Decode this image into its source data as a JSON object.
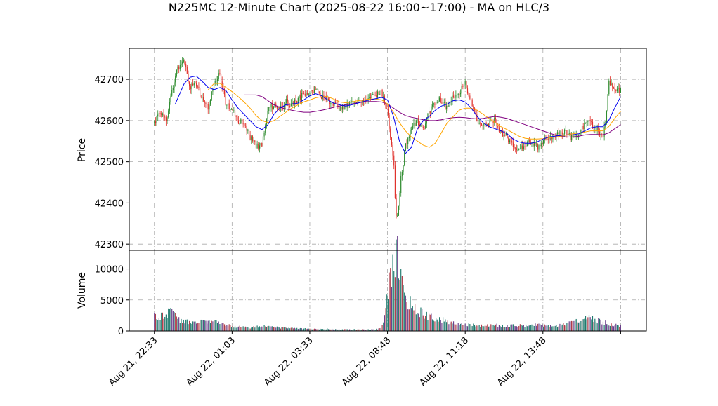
{
  "chart_data": {
    "type": "candlestick",
    "title": "N225MC 12-Minute Chart (2025-08-22 16:00~17:00) - MA on HLC/3",
    "price_panel": {
      "ylabel": "Price",
      "ylim": [
        42285,
        42775
      ],
      "yticks": [
        42300,
        42400,
        42500,
        42600,
        42700
      ],
      "grid": true
    },
    "volume_panel": {
      "ylabel": "Volume",
      "ylim": [
        0,
        13000
      ],
      "yticks": [
        0,
        5000,
        10000
      ],
      "grid": true
    },
    "x_ticks": [
      {
        "label": "Aug 21, 22:33",
        "bar": 0
      },
      {
        "label": "Aug 22, 01:03",
        "bar": 13
      },
      {
        "label": "Aug 22, 03:33",
        "bar": 26
      },
      {
        "label": "Aug 22, 08:48",
        "bar": 39
      },
      {
        "label": "Aug 22, 11:18",
        "bar": 52
      },
      {
        "label": "Aug 22, 13:48",
        "bar": 65
      },
      {
        "label": "",
        "bar": 78
      }
    ],
    "x_range": [
      -4.2,
      82.3
    ],
    "colors": {
      "up": "#2e8b2e",
      "down": "#e0302a",
      "ma_fast": "#0000ee",
      "ma_mid": "#ffa500",
      "ma_slow": "#800080",
      "grid": "#aaaaaa"
    },
    "close_path": [
      [
        0,
        42595
      ],
      [
        1,
        42620
      ],
      [
        2,
        42600
      ],
      [
        3,
        42680
      ],
      [
        4,
        42730
      ],
      [
        5,
        42745
      ],
      [
        6,
        42680
      ],
      [
        7,
        42690
      ],
      [
        8,
        42650
      ],
      [
        9,
        42630
      ],
      [
        10,
        42700
      ],
      [
        11,
        42710
      ],
      [
        12,
        42640
      ],
      [
        13,
        42630
      ],
      [
        14,
        42600
      ],
      [
        15,
        42590
      ],
      [
        16,
        42560
      ],
      [
        17,
        42540
      ],
      [
        18,
        42540
      ],
      [
        19,
        42625
      ],
      [
        20,
        42640
      ],
      [
        21,
        42625
      ],
      [
        22,
        42645
      ],
      [
        23,
        42640
      ],
      [
        24,
        42650
      ],
      [
        25,
        42665
      ],
      [
        26,
        42670
      ],
      [
        27,
        42675
      ],
      [
        28,
        42660
      ],
      [
        29,
        42650
      ],
      [
        30,
        42640
      ],
      [
        31,
        42630
      ],
      [
        32,
        42635
      ],
      [
        33,
        42640
      ],
      [
        34,
        42645
      ],
      [
        35,
        42650
      ],
      [
        36,
        42655
      ],
      [
        37,
        42660
      ],
      [
        38,
        42670
      ],
      [
        38.5,
        42640
      ],
      [
        39,
        42620
      ],
      [
        39.5,
        42560
      ],
      [
        40,
        42510
      ],
      [
        40.4,
        42370
      ],
      [
        40.8,
        42380
      ],
      [
        41.2,
        42460
      ],
      [
        41.6,
        42490
      ],
      [
        42,
        42540
      ],
      [
        43,
        42580
      ],
      [
        44,
        42600
      ],
      [
        45,
        42580
      ],
      [
        46,
        42620
      ],
      [
        47,
        42640
      ],
      [
        48,
        42650
      ],
      [
        49,
        42630
      ],
      [
        50,
        42660
      ],
      [
        51,
        42670
      ],
      [
        52,
        42690
      ],
      [
        53,
        42640
      ],
      [
        54,
        42600
      ],
      [
        55,
        42590
      ],
      [
        56,
        42590
      ],
      [
        57,
        42600
      ],
      [
        58,
        42570
      ],
      [
        59,
        42560
      ],
      [
        60,
        42540
      ],
      [
        61,
        42530
      ],
      [
        62,
        42545
      ],
      [
        63,
        42550
      ],
      [
        64,
        42535
      ],
      [
        65,
        42550
      ],
      [
        66,
        42560
      ],
      [
        67,
        42565
      ],
      [
        68,
        42575
      ],
      [
        69,
        42570
      ],
      [
        70,
        42555
      ],
      [
        71,
        42570
      ],
      [
        72,
        42590
      ],
      [
        73,
        42595
      ],
      [
        74,
        42580
      ],
      [
        75,
        42560
      ],
      [
        75.5,
        42600
      ],
      [
        76,
        42690
      ],
      [
        77,
        42680
      ],
      [
        78,
        42672
      ]
    ],
    "ma_fast": [
      [
        3.5,
        42640
      ],
      [
        5,
        42690
      ],
      [
        6,
        42705
      ],
      [
        7,
        42708
      ],
      [
        8,
        42695
      ],
      [
        9,
        42680
      ],
      [
        10,
        42675
      ],
      [
        11,
        42680
      ],
      [
        12,
        42672
      ],
      [
        13,
        42650
      ],
      [
        14,
        42630
      ],
      [
        15,
        42615
      ],
      [
        16,
        42600
      ],
      [
        17,
        42585
      ],
      [
        18,
        42578
      ],
      [
        19,
        42590
      ],
      [
        20,
        42615
      ],
      [
        21,
        42630
      ],
      [
        22,
        42638
      ],
      [
        23,
        42640
      ],
      [
        24,
        42642
      ],
      [
        25,
        42650
      ],
      [
        26,
        42660
      ],
      [
        27,
        42665
      ],
      [
        28,
        42660
      ],
      [
        29,
        42650
      ],
      [
        30,
        42642
      ],
      [
        31,
        42638
      ],
      [
        32,
        42635
      ],
      [
        33,
        42638
      ],
      [
        34,
        42642
      ],
      [
        35,
        42646
      ],
      [
        36,
        42650
      ],
      [
        37,
        42653
      ],
      [
        38,
        42656
      ],
      [
        39,
        42650
      ],
      [
        40,
        42610
      ],
      [
        41,
        42550
      ],
      [
        42,
        42520
      ],
      [
        43,
        42535
      ],
      [
        44,
        42580
      ],
      [
        45,
        42600
      ],
      [
        46,
        42610
      ],
      [
        47,
        42625
      ],
      [
        48,
        42635
      ],
      [
        49,
        42640
      ],
      [
        50,
        42648
      ],
      [
        51,
        42650
      ],
      [
        52,
        42645
      ],
      [
        53,
        42630
      ],
      [
        54,
        42610
      ],
      [
        55,
        42595
      ],
      [
        56,
        42585
      ],
      [
        57,
        42580
      ],
      [
        58,
        42575
      ],
      [
        59,
        42568
      ],
      [
        60,
        42555
      ],
      [
        61,
        42548
      ],
      [
        62,
        42545
      ],
      [
        63,
        42545
      ],
      [
        64,
        42548
      ],
      [
        65,
        42555
      ],
      [
        66,
        42560
      ],
      [
        67,
        42562
      ],
      [
        68,
        42564
      ],
      [
        69,
        42565
      ],
      [
        70,
        42565
      ],
      [
        71,
        42568
      ],
      [
        72,
        42575
      ],
      [
        73,
        42582
      ],
      [
        74,
        42585
      ],
      [
        75,
        42585
      ],
      [
        76,
        42600
      ],
      [
        77,
        42630
      ],
      [
        78,
        42658
      ]
    ],
    "ma_mid": [
      [
        9,
        42675
      ],
      [
        10,
        42690
      ],
      [
        11,
        42690
      ],
      [
        12,
        42680
      ],
      [
        13,
        42670
      ],
      [
        14,
        42658
      ],
      [
        15,
        42645
      ],
      [
        16,
        42630
      ],
      [
        17,
        42612
      ],
      [
        18,
        42600
      ],
      [
        19,
        42595
      ],
      [
        20,
        42600
      ],
      [
        21,
        42610
      ],
      [
        22,
        42620
      ],
      [
        23,
        42630
      ],
      [
        24,
        42638
      ],
      [
        25,
        42645
      ],
      [
        26,
        42650
      ],
      [
        27,
        42655
      ],
      [
        28,
        42658
      ],
      [
        29,
        42658
      ],
      [
        30,
        42652
      ],
      [
        31,
        42645
      ],
      [
        32,
        42643
      ],
      [
        33,
        42645
      ],
      [
        34,
        42648
      ],
      [
        35,
        42650
      ],
      [
        36,
        42652
      ],
      [
        37,
        42652
      ],
      [
        38,
        42650
      ],
      [
        39,
        42640
      ],
      [
        40,
        42620
      ],
      [
        41,
        42595
      ],
      [
        42,
        42575
      ],
      [
        43,
        42560
      ],
      [
        44,
        42550
      ],
      [
        45,
        42540
      ],
      [
        46,
        42535
      ],
      [
        47,
        42545
      ],
      [
        48,
        42570
      ],
      [
        49,
        42595
      ],
      [
        50,
        42610
      ],
      [
        51,
        42625
      ],
      [
        52,
        42630
      ],
      [
        53,
        42630
      ],
      [
        54,
        42625
      ],
      [
        55,
        42615
      ],
      [
        56,
        42605
      ],
      [
        57,
        42595
      ],
      [
        58,
        42585
      ],
      [
        59,
        42578
      ],
      [
        60,
        42570
      ],
      [
        61,
        42562
      ],
      [
        62,
        42557
      ],
      [
        63,
        42555
      ],
      [
        64,
        42555
      ],
      [
        65,
        42556
      ],
      [
        66,
        42558
      ],
      [
        67,
        42560
      ],
      [
        68,
        42562
      ],
      [
        69,
        42565
      ],
      [
        70,
        42568
      ],
      [
        71,
        42570
      ],
      [
        72,
        42572
      ],
      [
        73,
        42575
      ],
      [
        74,
        42575
      ],
      [
        75,
        42575
      ],
      [
        76,
        42585
      ],
      [
        77,
        42605
      ],
      [
        78,
        42622
      ]
    ],
    "ma_slow": [
      [
        15,
        42662
      ],
      [
        16,
        42662
      ],
      [
        17,
        42662
      ],
      [
        18,
        42658
      ],
      [
        19,
        42648
      ],
      [
        20,
        42638
      ],
      [
        21,
        42632
      ],
      [
        22,
        42628
      ],
      [
        23,
        42625
      ],
      [
        24,
        42622
      ],
      [
        25,
        42620
      ],
      [
        26,
        42620
      ],
      [
        27,
        42622
      ],
      [
        28,
        42625
      ],
      [
        29,
        42628
      ],
      [
        30,
        42632
      ],
      [
        31,
        42635
      ],
      [
        32,
        42638
      ],
      [
        33,
        42640
      ],
      [
        34,
        42643
      ],
      [
        35,
        42645
      ],
      [
        36,
        42646
      ],
      [
        37,
        42646
      ],
      [
        38,
        42645
      ],
      [
        39,
        42640
      ],
      [
        40,
        42630
      ],
      [
        41,
        42620
      ],
      [
        42,
        42612
      ],
      [
        43,
        42608
      ],
      [
        44,
        42605
      ],
      [
        45,
        42602
      ],
      [
        46,
        42600
      ],
      [
        47,
        42600
      ],
      [
        48,
        42602
      ],
      [
        49,
        42605
      ],
      [
        50,
        42607
      ],
      [
        51,
        42608
      ],
      [
        52,
        42607
      ],
      [
        53,
        42605
      ],
      [
        54,
        42604
      ],
      [
        55,
        42605
      ],
      [
        56,
        42608
      ],
      [
        57,
        42610
      ],
      [
        58,
        42608
      ],
      [
        59,
        42605
      ],
      [
        60,
        42600
      ],
      [
        61,
        42595
      ],
      [
        62,
        42590
      ],
      [
        63,
        42585
      ],
      [
        64,
        42580
      ],
      [
        65,
        42575
      ],
      [
        66,
        42570
      ],
      [
        67,
        42565
      ],
      [
        68,
        42562
      ],
      [
        69,
        42560
      ],
      [
        70,
        42560
      ],
      [
        71,
        42562
      ],
      [
        72,
        42565
      ],
      [
        73,
        42566
      ],
      [
        74,
        42566
      ],
      [
        75,
        42565
      ],
      [
        76,
        42570
      ],
      [
        77,
        42580
      ],
      [
        78,
        42590
      ]
    ],
    "volume_profile": [
      [
        0,
        2300
      ],
      [
        1,
        2200
      ],
      [
        2,
        2800
      ],
      [
        3,
        3600
      ],
      [
        4,
        1900
      ],
      [
        5,
        1600
      ],
      [
        6,
        1400
      ],
      [
        7,
        1300
      ],
      [
        8,
        1500
      ],
      [
        9,
        1400
      ],
      [
        10,
        1600
      ],
      [
        11,
        1300
      ],
      [
        12,
        1000
      ],
      [
        13,
        800
      ],
      [
        14,
        700
      ],
      [
        15,
        600
      ],
      [
        16,
        550
      ],
      [
        17,
        650
      ],
      [
        18,
        800
      ],
      [
        19,
        700
      ],
      [
        20,
        650
      ],
      [
        21,
        550
      ],
      [
        22,
        500
      ],
      [
        23,
        450
      ],
      [
        24,
        400
      ],
      [
        25,
        380
      ],
      [
        26,
        350
      ],
      [
        27,
        330
      ],
      [
        28,
        300
      ],
      [
        29,
        320
      ],
      [
        30,
        280
      ],
      [
        31,
        260
      ],
      [
        32,
        250
      ],
      [
        33,
        260
      ],
      [
        34,
        240
      ],
      [
        35,
        230
      ],
      [
        36,
        250
      ],
      [
        37,
        260
      ],
      [
        38,
        500
      ],
      [
        38.5,
        2000
      ],
      [
        39,
        6500
      ],
      [
        39.5,
        8000
      ],
      [
        40,
        10500
      ],
      [
        40.5,
        12500
      ],
      [
        41,
        11000
      ],
      [
        41.5,
        7500
      ],
      [
        42,
        5500
      ],
      [
        43,
        4200
      ],
      [
        44,
        3500
      ],
      [
        45,
        2600
      ],
      [
        46,
        2200
      ],
      [
        47,
        2000
      ],
      [
        48,
        1800
      ],
      [
        49,
        1500
      ],
      [
        50,
        1200
      ],
      [
        51,
        1100
      ],
      [
        52,
        1000
      ],
      [
        53,
        950
      ],
      [
        54,
        900
      ],
      [
        55,
        850
      ],
      [
        56,
        900
      ],
      [
        57,
        950
      ],
      [
        58,
        850
      ],
      [
        59,
        800
      ],
      [
        60,
        850
      ],
      [
        61,
        900
      ],
      [
        62,
        950
      ],
      [
        63,
        1000
      ],
      [
        64,
        950
      ],
      [
        65,
        900
      ],
      [
        66,
        850
      ],
      [
        67,
        800
      ],
      [
        68,
        900
      ],
      [
        69,
        1200
      ],
      [
        70,
        1500
      ],
      [
        71,
        1800
      ],
      [
        72,
        2000
      ],
      [
        73,
        2200
      ],
      [
        74,
        1800
      ],
      [
        75,
        1400
      ],
      [
        76,
        1200
      ],
      [
        77,
        950
      ],
      [
        78,
        800
      ]
    ]
  }
}
